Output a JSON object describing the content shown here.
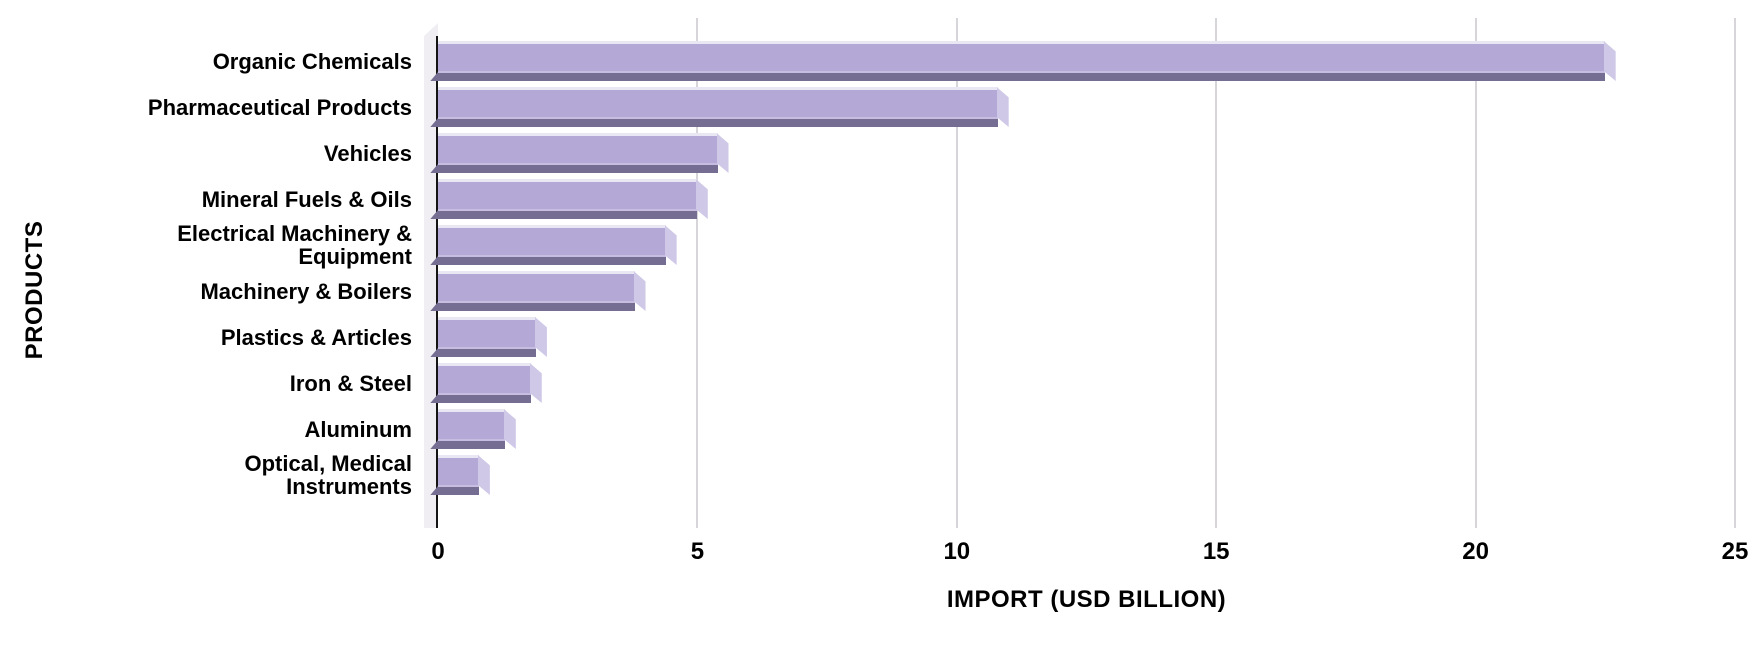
{
  "chart_data": {
    "type": "bar",
    "orientation": "horizontal",
    "xlabel": "IMPORT (USD BILLION)",
    "ylabel": "PRODUCTS",
    "categories": [
      "Organic Chemicals",
      "Pharmaceutical Products",
      "Vehicles",
      "Mineral Fuels & Oils",
      "Electrical Machinery & Equipment",
      "Machinery & Boilers",
      "Plastics & Articles",
      "Iron & Steel",
      "Aluminum",
      "Optical, Medical Instruments"
    ],
    "display_labels": [
      "Organic Chemicals",
      "Pharmaceutical Products",
      "Vehicles",
      "Mineral Fuels & Oils",
      "Electrical Machinery &\nEquipment",
      "Machinery & Boilers",
      "Plastics & Articles",
      "Iron & Steel",
      "Aluminum",
      "Optical, Medical\nInstruments"
    ],
    "values": [
      22.7,
      11.0,
      5.6,
      5.2,
      4.6,
      4.0,
      2.1,
      2.0,
      1.5,
      1.0
    ],
    "xlim": [
      0,
      25
    ],
    "xticks": [
      0,
      5,
      10,
      15,
      20,
      25
    ],
    "grid": true,
    "legend": false,
    "style_3d": true,
    "colors": {
      "bar_face": "#b3a8d6",
      "bar_top_edge": "#eae7f4",
      "bar_shadow": "#766e92",
      "bar_end_cap": "#cfc8e7",
      "wall": "#f0eef3",
      "gridline": "#d7d5da",
      "axis_line": "#141414",
      "text": "#000000",
      "background": "#ffffff"
    }
  }
}
